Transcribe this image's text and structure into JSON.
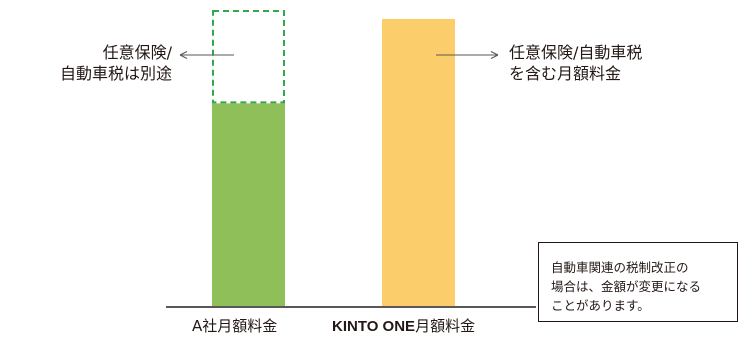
{
  "chart_data": {
    "type": "bar",
    "categories": [
      "A社月額料金",
      "KINTO ONE月額料金"
    ],
    "category_label_parts": [
      {
        "bold": "",
        "normal": "A社月額料金"
      },
      {
        "bold": "KINTO ONE",
        "normal": "月額料金"
      }
    ],
    "series": [
      {
        "label_key": "base",
        "values": [
          205,
          290
        ]
      },
      {
        "label_key": "excluded_extras",
        "values": [
          94,
          0
        ]
      }
    ],
    "segment_styles": {
      "a_base": "solid",
      "a_extras": "dashed",
      "kinto": "solid"
    },
    "colors": {
      "a_base": "#8fbf59",
      "a_extras_border": "#31a84b",
      "kinto": "#fccd6b",
      "axis": "#595757"
    },
    "ylim": [
      0,
      300
    ],
    "title": "",
    "xlabel": "",
    "ylabel": "",
    "grid": false,
    "annotations": {
      "a_extras_note": [
        "任意保険/",
        "自動車税は別途"
      ],
      "kinto_note": [
        "任意保険/自動車税",
        "を含む月額料金"
      ]
    },
    "footnote": [
      "自動車関連の税制改正の",
      "場合は、金額が変更になる",
      "ことがあります。"
    ]
  }
}
